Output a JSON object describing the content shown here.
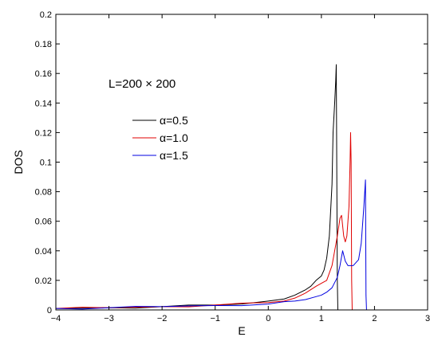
{
  "chart_data": {
    "type": "line",
    "title": "",
    "xlabel": "E",
    "ylabel": "DOS",
    "xlim": [
      -4,
      3
    ],
    "ylim": [
      0,
      0.2
    ],
    "xticks": [
      -4,
      -3,
      -2,
      -1,
      0,
      1,
      2,
      3
    ],
    "yticks": [
      0,
      0.02,
      0.04,
      0.06,
      0.08,
      0.1,
      0.12,
      0.14,
      0.16,
      0.18,
      0.2
    ],
    "xtick_labels": [
      "−4",
      "−3",
      "−2",
      "−1",
      "0",
      "1",
      "2",
      "3"
    ],
    "ytick_labels": [
      "0",
      "0.02",
      "0.04",
      "0.06",
      "0.08",
      "0.1",
      "0.12",
      "0.14",
      "0.16",
      "0.18",
      "0.2"
    ],
    "grid": false,
    "annotation": "L=200 × 200",
    "legend_position": "upper-left-inside",
    "series": [
      {
        "name": "α=0.5",
        "color": "#000000",
        "x": [
          -4,
          -3.5,
          -3,
          -2.5,
          -2,
          -1.5,
          -1,
          -0.5,
          0,
          0.3,
          0.5,
          0.7,
          0.8,
          0.9,
          1.0,
          1.05,
          1.1,
          1.15,
          1.2,
          1.22,
          1.25,
          1.27,
          1.28,
          1.3,
          1.31
        ],
        "y": [
          0.001,
          0.0012,
          0.0015,
          0.0018,
          0.0022,
          0.0027,
          0.0033,
          0.004,
          0.006,
          0.008,
          0.01,
          0.013,
          0.016,
          0.02,
          0.023,
          0.027,
          0.035,
          0.05,
          0.085,
          0.12,
          0.14,
          0.155,
          0.166,
          0.02,
          0
        ]
      },
      {
        "name": "α=1.0",
        "color": "#e00000",
        "x": [
          -4,
          -3.5,
          -3,
          -2.5,
          -2,
          -1.5,
          -1,
          -0.5,
          0,
          0.3,
          0.5,
          0.7,
          0.9,
          1.0,
          1.1,
          1.2,
          1.25,
          1.3,
          1.35,
          1.38,
          1.42,
          1.45,
          1.48,
          1.52,
          1.54,
          1.55,
          1.56,
          1.57,
          1.58
        ],
        "y": [
          0.001,
          0.0012,
          0.0015,
          0.0018,
          0.0022,
          0.0027,
          0.0033,
          0.004,
          0.005,
          0.006,
          0.008,
          0.012,
          0.016,
          0.018,
          0.02,
          0.03,
          0.04,
          0.05,
          0.062,
          0.064,
          0.05,
          0.046,
          0.05,
          0.07,
          0.1,
          0.12,
          0.1,
          0.02,
          0
        ]
      },
      {
        "name": "α=1.5",
        "color": "#0000e0",
        "x": [
          -4,
          -3.5,
          -3,
          -2.5,
          -2,
          -1.5,
          -1,
          -0.5,
          0,
          0.3,
          0.5,
          0.7,
          0.9,
          1.0,
          1.1,
          1.2,
          1.3,
          1.35,
          1.4,
          1.45,
          1.5,
          1.6,
          1.7,
          1.75,
          1.8,
          1.83,
          1.84,
          1.85
        ],
        "y": [
          0.001,
          0.0012,
          0.0015,
          0.0018,
          0.0022,
          0.0027,
          0.003,
          0.0035,
          0.004,
          0.005,
          0.006,
          0.007,
          0.009,
          0.01,
          0.012,
          0.015,
          0.022,
          0.03,
          0.04,
          0.033,
          0.03,
          0.03,
          0.034,
          0.045,
          0.07,
          0.088,
          0.01,
          0
        ]
      }
    ]
  }
}
